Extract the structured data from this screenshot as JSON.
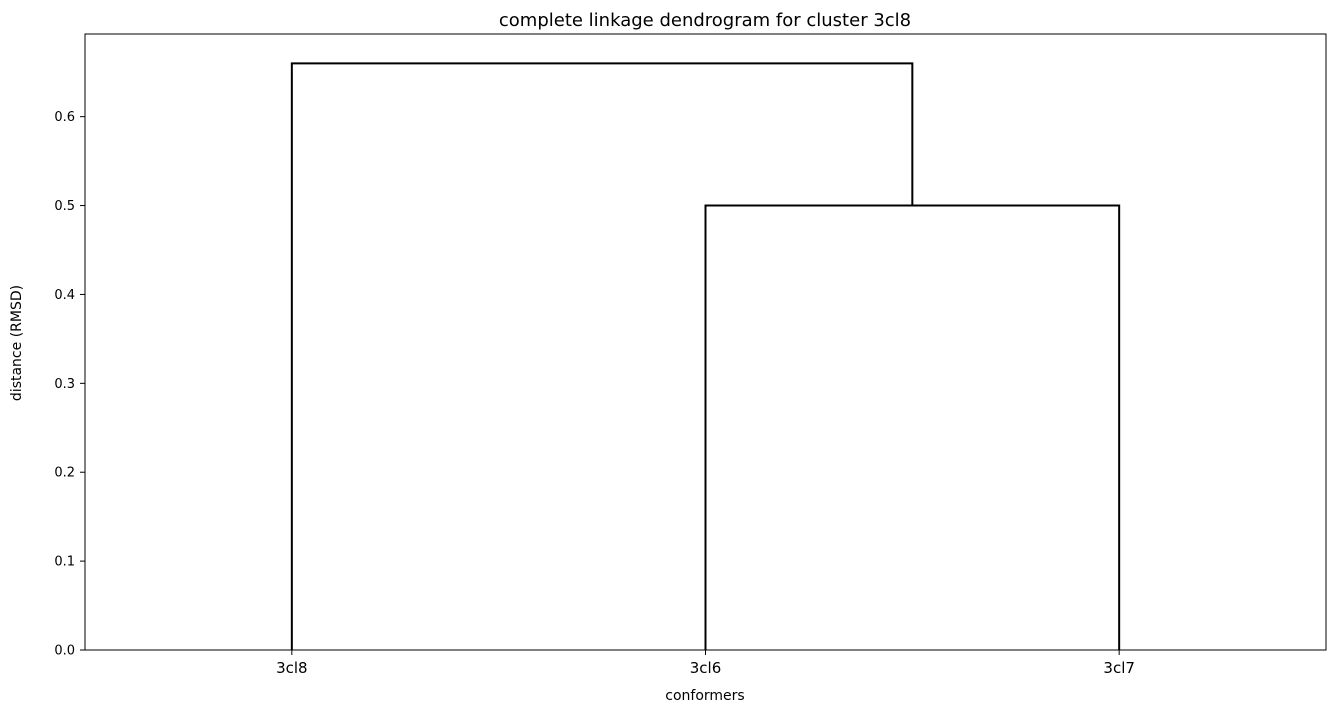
{
  "chart_data": {
    "type": "dendrogram",
    "title": "complete linkage dendrogram for cluster 3cl8",
    "xlabel": "conformers",
    "ylabel": "distance (RMSD)",
    "leaves": [
      "3cl8",
      "3cl6",
      "3cl7"
    ],
    "yticks": [
      "0.0",
      "0.1",
      "0.2",
      "0.3",
      "0.4",
      "0.5",
      "0.6"
    ],
    "ylim": [
      0,
      0.693
    ],
    "merges": [
      {
        "left": "3cl6",
        "right": "3cl7",
        "distance": 0.5
      },
      {
        "left": "3cl8",
        "right": "3cl6+3cl7",
        "distance": 0.66
      }
    ],
    "grid": false,
    "line_color": "#000000"
  }
}
